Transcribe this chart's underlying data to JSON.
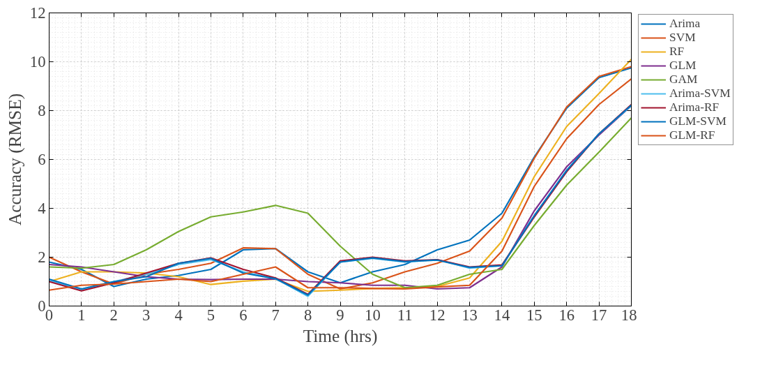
{
  "chart_data": {
    "type": "line",
    "xlabel": "Time (hrs)",
    "ylabel": "Accuracy (RMSE)",
    "x": [
      0,
      1,
      2,
      3,
      4,
      5,
      6,
      7,
      8,
      9,
      10,
      11,
      12,
      13,
      14,
      15,
      16,
      17,
      18
    ],
    "xlim": [
      0,
      18
    ],
    "ylim": [
      0,
      12
    ],
    "xticks": [
      0,
      1,
      2,
      3,
      4,
      5,
      6,
      7,
      8,
      9,
      10,
      11,
      12,
      13,
      14,
      15,
      16,
      17,
      18
    ],
    "yticks": [
      0,
      2,
      4,
      6,
      8,
      10,
      12
    ],
    "grid": true,
    "legend": "right",
    "line_style": "solid",
    "marker": "none",
    "series": [
      {
        "name": "Arima",
        "color": "#0072bd",
        "values": [
          1.8,
          1.5,
          0.8,
          1.1,
          1.25,
          1.5,
          2.3,
          2.35,
          1.4,
          0.95,
          1.4,
          1.7,
          2.3,
          2.7,
          3.8,
          6.1,
          8.1,
          9.35,
          9.75
        ]
      },
      {
        "name": "SVM",
        "color": "#d95319",
        "values": [
          2.0,
          1.4,
          0.9,
          1.3,
          1.5,
          1.75,
          2.38,
          2.35,
          1.3,
          0.7,
          0.95,
          1.4,
          1.75,
          2.25,
          3.6,
          6.05,
          8.15,
          9.4,
          9.8
        ]
      },
      {
        "name": "RF",
        "color": "#edb120",
        "values": [
          1.0,
          1.4,
          1.4,
          1.35,
          1.2,
          0.88,
          1.02,
          1.1,
          0.6,
          0.65,
          0.72,
          0.75,
          0.8,
          1.15,
          2.65,
          5.3,
          7.35,
          8.7,
          10.1
        ]
      },
      {
        "name": "GLM",
        "color": "#7e2f8e",
        "values": [
          1.7,
          1.6,
          1.4,
          1.2,
          1.1,
          1.08,
          1.1,
          1.1,
          1.0,
          0.95,
          0.85,
          0.85,
          0.7,
          0.75,
          1.6,
          3.9,
          5.7,
          7.0,
          8.2
        ]
      },
      {
        "name": "GAM",
        "color": "#77ac30",
        "values": [
          1.6,
          1.55,
          1.7,
          2.3,
          3.05,
          3.65,
          3.85,
          4.12,
          3.8,
          2.45,
          1.3,
          0.75,
          0.85,
          1.3,
          1.5,
          3.3,
          4.95,
          6.3,
          7.7
        ]
      },
      {
        "name": "Arima-SVM",
        "color": "#4dbeee",
        "values": [
          1.05,
          0.65,
          1.0,
          1.3,
          1.7,
          1.9,
          1.4,
          1.12,
          0.4,
          1.8,
          1.95,
          1.8,
          1.9,
          1.55,
          1.65,
          3.7,
          5.55,
          7.05,
          8.2
        ]
      },
      {
        "name": "Arima-RF",
        "color": "#a2142f",
        "values": [
          1.0,
          0.62,
          0.95,
          1.35,
          1.75,
          1.97,
          1.5,
          1.15,
          0.48,
          1.85,
          2.0,
          1.85,
          1.9,
          1.6,
          1.68,
          3.65,
          5.5,
          7.05,
          8.25
        ]
      },
      {
        "name": "GLM-SVM",
        "color": "#0072bd",
        "values": [
          1.1,
          0.7,
          1.0,
          1.2,
          1.75,
          1.95,
          1.35,
          1.12,
          0.45,
          1.8,
          1.97,
          1.82,
          1.88,
          1.58,
          1.65,
          3.7,
          5.55,
          7.05,
          8.22
        ]
      },
      {
        "name": "GLM-RF",
        "color": "#d95319",
        "values": [
          0.65,
          0.85,
          0.9,
          1.0,
          1.1,
          1.0,
          1.3,
          1.6,
          0.75,
          0.75,
          0.72,
          0.7,
          0.78,
          0.85,
          2.25,
          4.9,
          6.85,
          8.25,
          9.3
        ]
      }
    ]
  }
}
